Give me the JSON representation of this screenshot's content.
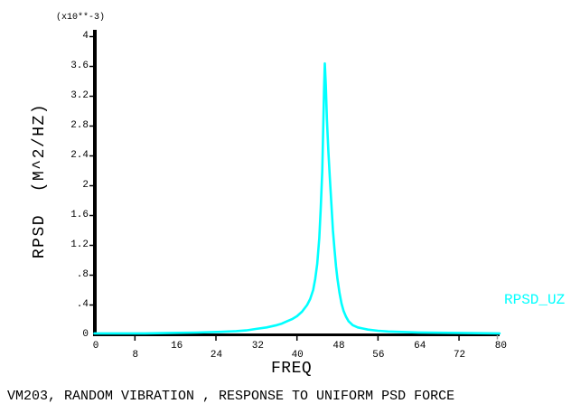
{
  "window": {
    "background_color": "#FFFFFF"
  },
  "chart_data": {
    "type": "line",
    "title": "VM203, RANDOM VIBRATION , RESPONSE TO UNIFORM PSD FORCE",
    "xlabel": "FREQ",
    "ylabel": "RPSD  (M^2/HZ)",
    "y_scale_note": "(x10**-3)",
    "xlim": [
      0,
      80
    ],
    "ylim": [
      0,
      4
    ],
    "grid": "off",
    "legend_position": "right",
    "axis_color": "#000000",
    "x_ticks_upper": [
      0,
      16,
      32,
      48,
      64,
      80
    ],
    "x_ticks_lower": [
      8,
      24,
      40,
      56,
      72
    ],
    "y_ticks": [
      {
        "label": "4",
        "value": 4.0
      },
      {
        "label": "3.6",
        "value": 3.6
      },
      {
        "label": "3.2",
        "value": 3.2
      },
      {
        "label": "2.8",
        "value": 2.8
      },
      {
        "label": "2.4",
        "value": 2.4
      },
      {
        "label": "2",
        "value": 2.0
      },
      {
        "label": "1.6",
        "value": 1.6
      },
      {
        "label": "1.2",
        "value": 1.2
      },
      {
        "label": ".8",
        "value": 0.8
      },
      {
        "label": ".4",
        "value": 0.4
      },
      {
        "label": "0",
        "value": 0.0
      }
    ],
    "series": [
      {
        "name": "RPSD_UZ",
        "color": "#00FFFF",
        "units": "x10**-3 M^2/HZ",
        "peak": {
          "freq": 45.5,
          "value": 3.64
        },
        "points": [
          [
            0,
            0.02
          ],
          [
            5,
            0.02
          ],
          [
            10,
            0.02
          ],
          [
            15,
            0.025
          ],
          [
            20,
            0.03
          ],
          [
            25,
            0.04
          ],
          [
            28,
            0.05
          ],
          [
            30,
            0.06
          ],
          [
            32,
            0.08
          ],
          [
            34,
            0.1
          ],
          [
            36,
            0.13
          ],
          [
            37,
            0.15
          ],
          [
            38,
            0.18
          ],
          [
            39,
            0.21
          ],
          [
            40,
            0.25
          ],
          [
            41,
            0.31
          ],
          [
            42,
            0.4
          ],
          [
            42.6,
            0.48
          ],
          [
            43.2,
            0.6
          ],
          [
            43.6,
            0.75
          ],
          [
            44,
            0.95
          ],
          [
            44.4,
            1.3
          ],
          [
            44.7,
            1.7
          ],
          [
            45,
            2.2
          ],
          [
            45.2,
            2.8
          ],
          [
            45.35,
            3.3
          ],
          [
            45.5,
            3.64
          ],
          [
            45.7,
            3.35
          ],
          [
            45.9,
            2.9
          ],
          [
            46.2,
            2.45
          ],
          [
            46.5,
            2.1
          ],
          [
            46.8,
            1.75
          ],
          [
            47.1,
            1.4
          ],
          [
            47.4,
            1.15
          ],
          [
            47.7,
            0.92
          ],
          [
            48,
            0.75
          ],
          [
            48.4,
            0.56
          ],
          [
            48.8,
            0.42
          ],
          [
            49.2,
            0.32
          ],
          [
            49.7,
            0.24
          ],
          [
            50.2,
            0.18
          ],
          [
            51,
            0.13
          ],
          [
            52,
            0.1
          ],
          [
            53,
            0.085
          ],
          [
            54,
            0.07
          ],
          [
            56,
            0.055
          ],
          [
            58,
            0.045
          ],
          [
            60,
            0.04
          ],
          [
            64,
            0.032
          ],
          [
            68,
            0.028
          ],
          [
            72,
            0.025
          ],
          [
            76,
            0.022
          ],
          [
            80,
            0.02
          ]
        ]
      }
    ]
  }
}
